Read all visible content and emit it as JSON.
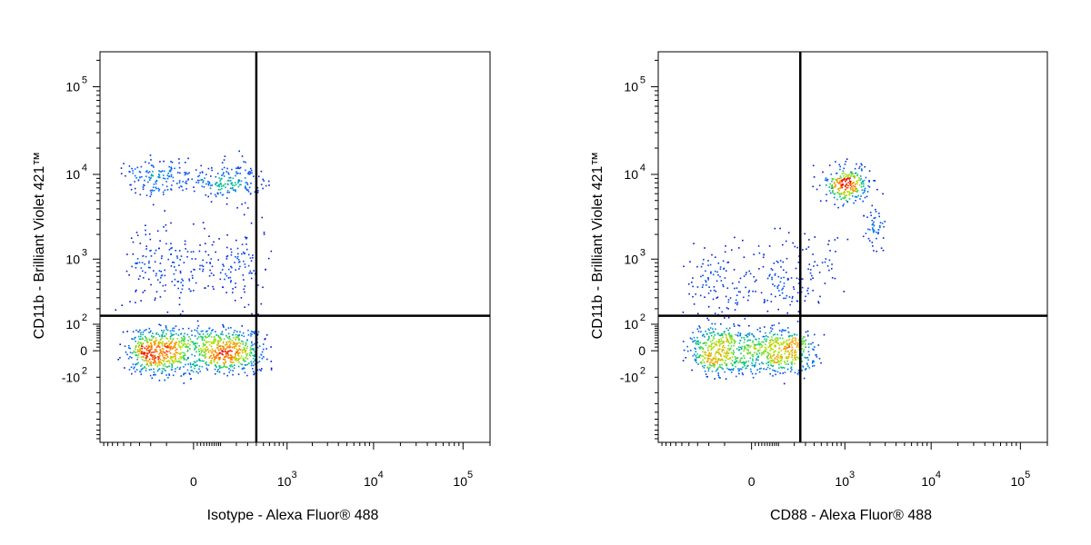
{
  "chart_data": [
    {
      "type": "scatter",
      "subtype": "flow-cytometry-density-dot-plot",
      "xlabel": "Isotype - Alexa Fluor® 488",
      "ylabel": "CD11b - Brilliant Violet 421™",
      "x_scale": "biexponential",
      "y_scale": "biexponential",
      "xlim": [
        -1000,
        200000
      ],
      "ylim": [
        -1000,
        250000
      ],
      "x_ticks": [
        {
          "value": 0,
          "base": "0",
          "exp": ""
        },
        {
          "value": 1000,
          "base": "10",
          "exp": "3"
        },
        {
          "value": 10000,
          "base": "10",
          "exp": "4"
        },
        {
          "value": 100000,
          "base": "10",
          "exp": "5"
        }
      ],
      "y_ticks": [
        {
          "value": 100000,
          "base": "10",
          "exp": "5"
        },
        {
          "value": 10000,
          "base": "10",
          "exp": "4"
        },
        {
          "value": 1000,
          "base": "10",
          "exp": "3"
        },
        {
          "value": 100,
          "base": "10",
          "exp": "2"
        },
        {
          "value": 0,
          "base": "0",
          "exp": ""
        },
        {
          "value": -100,
          "base": "-10",
          "exp": "2"
        }
      ],
      "gate": {
        "x": 400,
        "y": 150
      },
      "grid": false,
      "legend": "none",
      "populations": [
        {
          "x_center": 0,
          "y_center": 0,
          "x_spread": 200,
          "y_spread": 40,
          "count": 1100
        },
        {
          "x_center": 0,
          "y_center": 800,
          "x_spread": 230,
          "y_spread": 2.6,
          "count": 280
        },
        {
          "x_center": 0,
          "y_center": 9000,
          "x_spread": 230,
          "y_spread": 1.5,
          "count": 330
        }
      ],
      "seed": 7
    },
    {
      "type": "scatter",
      "subtype": "flow-cytometry-density-dot-plot",
      "xlabel": "CD88 - Alexa Fluor® 488",
      "ylabel": "CD11b - Brilliant Violet 421™",
      "x_scale": "biexponential",
      "y_scale": "biexponential",
      "xlim": [
        -1000,
        200000
      ],
      "ylim": [
        -1000,
        250000
      ],
      "x_ticks": [
        {
          "value": 0,
          "base": "0",
          "exp": ""
        },
        {
          "value": 1000,
          "base": "10",
          "exp": "3"
        },
        {
          "value": 10000,
          "base": "10",
          "exp": "4"
        },
        {
          "value": 100000,
          "base": "10",
          "exp": "5"
        }
      ],
      "y_ticks": [
        {
          "value": 100000,
          "base": "10",
          "exp": "5"
        },
        {
          "value": 10000,
          "base": "10",
          "exp": "4"
        },
        {
          "value": 1000,
          "base": "10",
          "exp": "3"
        },
        {
          "value": 100,
          "base": "10",
          "exp": "2"
        },
        {
          "value": 0,
          "base": "0",
          "exp": ""
        },
        {
          "value": -100,
          "base": "-10",
          "exp": "2"
        }
      ],
      "gate": {
        "x": 250,
        "y": 150
      },
      "grid": false,
      "legend": "none",
      "populations": [
        {
          "x_center": 0,
          "y_center": 0,
          "x_spread": 170,
          "y_spread": 40,
          "count": 900
        },
        {
          "x_center": 0,
          "y_center": 500,
          "x_spread": 180,
          "y_spread": 2.6,
          "count": 230
        },
        {
          "x_center": 1000,
          "y_center": 8000,
          "x_spread": 1.7,
          "y_spread": 1.5,
          "count": 260
        },
        {
          "x_center": 2200,
          "y_center": 2500,
          "x_spread": 1.3,
          "y_spread": 1.6,
          "count": 50
        },
        {
          "x_center": 500,
          "y_center": 1000,
          "x_spread": 2.0,
          "y_spread": 2.5,
          "count": 30
        }
      ],
      "seed": 19
    }
  ]
}
